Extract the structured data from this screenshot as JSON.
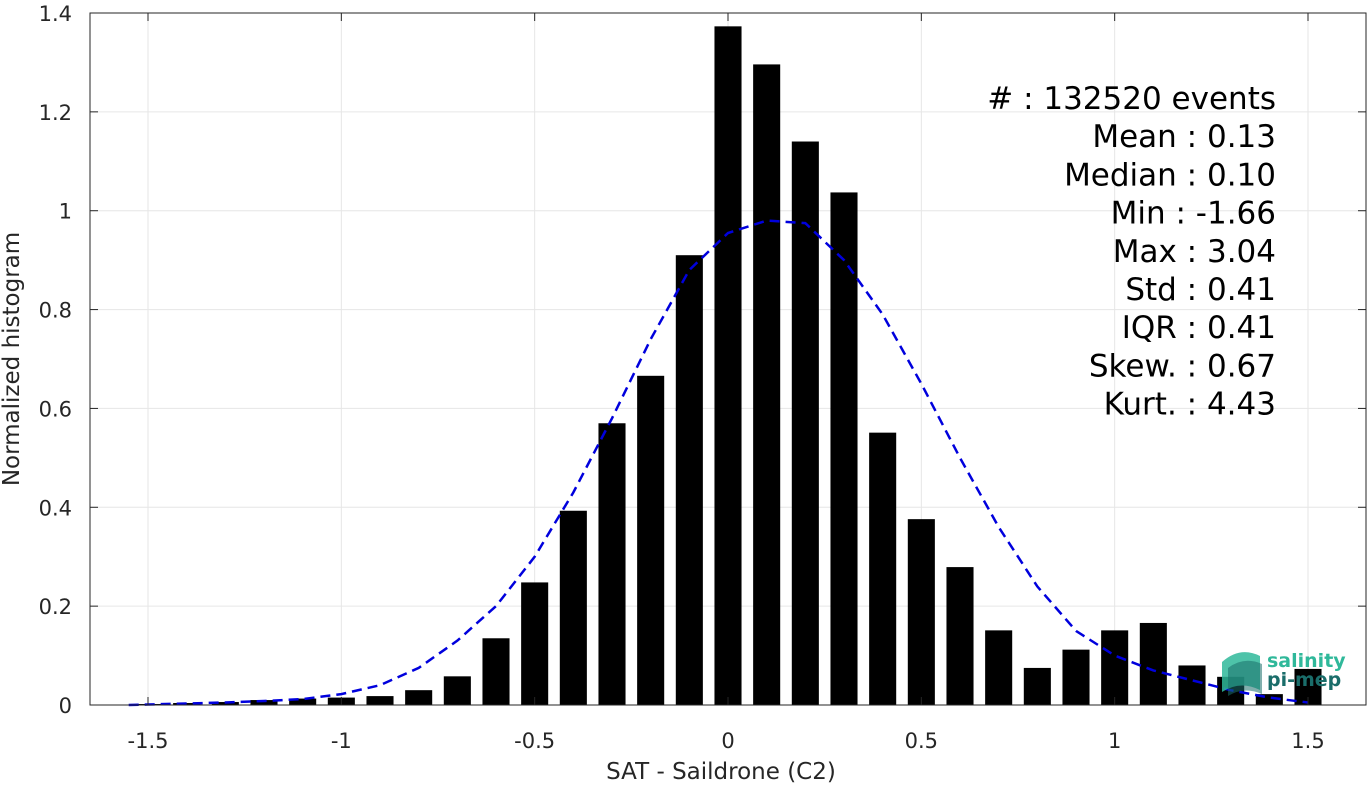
{
  "chart_data": {
    "type": "bar",
    "xlabel": "SAT - Saildrone (C2)",
    "ylabel": "Normalized histogram",
    "xlim": [
      -1.65,
      1.65
    ],
    "ylim": [
      0,
      1.4
    ],
    "xticks": [
      -1.5,
      -1,
      -0.5,
      0,
      0.5,
      1,
      1.5
    ],
    "xtick_labels": [
      "-1.5",
      "-1",
      "-0.5",
      "0",
      "0.5",
      "1",
      "1.5"
    ],
    "yticks": [
      0,
      0.2,
      0.4,
      0.6,
      0.8,
      1,
      1.2,
      1.4
    ],
    "ytick_labels": [
      "0",
      "0.2",
      "0.4",
      "0.6",
      "0.8",
      "1",
      "1.2",
      "1.4"
    ],
    "grid": true,
    "bar_color": "#000000",
    "bars": {
      "centers": [
        -1.5,
        -1.4,
        -1.3,
        -1.2,
        -1.1,
        -1.0,
        -0.9,
        -0.8,
        -0.7,
        -0.6,
        -0.5,
        -0.4,
        -0.3,
        -0.2,
        -0.1,
        0.0,
        0.1,
        0.2,
        0.3,
        0.4,
        0.5,
        0.6,
        0.7,
        0.8,
        0.9,
        1.0,
        1.1,
        1.2,
        1.3,
        1.4,
        1.5
      ],
      "values": [
        0.002,
        0.004,
        0.006,
        0.01,
        0.013,
        0.015,
        0.018,
        0.03,
        0.058,
        0.135,
        0.248,
        0.393,
        0.57,
        0.666,
        0.91,
        1.373,
        1.296,
        1.14,
        1.037,
        0.551,
        0.376,
        0.279,
        0.151,
        0.075,
        0.112,
        0.151,
        0.166,
        0.08,
        0.057,
        0.022,
        0.073
      ]
    },
    "fit_curve": {
      "style": "dashed",
      "color": "#0000dd",
      "x": [
        -1.55,
        -1.5,
        -1.4,
        -1.3,
        -1.2,
        -1.1,
        -1.0,
        -0.9,
        -0.8,
        -0.7,
        -0.6,
        -0.5,
        -0.4,
        -0.3,
        -0.2,
        -0.1,
        0.0,
        0.1,
        0.2,
        0.3,
        0.4,
        0.5,
        0.6,
        0.7,
        0.8,
        0.9,
        1.0,
        1.1,
        1.2,
        1.3,
        1.4,
        1.5
      ],
      "y": [
        0.0,
        0.001,
        0.003,
        0.005,
        0.008,
        0.012,
        0.022,
        0.04,
        0.075,
        0.13,
        0.2,
        0.3,
        0.43,
        0.58,
        0.74,
        0.88,
        0.955,
        0.98,
        0.975,
        0.9,
        0.79,
        0.65,
        0.5,
        0.36,
        0.24,
        0.15,
        0.1,
        0.07,
        0.05,
        0.03,
        0.015,
        0.005
      ]
    }
  },
  "stats": [
    "#   : 132520 events",
    "Mean : 0.13",
    "Median : 0.10",
    "Min : -1.66",
    "Max : 3.04",
    "Std : 0.41",
    "IQR : 0.41",
    "Skew. : 0.67",
    "Kurt. : 4.43"
  ],
  "logo": {
    "line1": "salinity",
    "line2": "pi-mep",
    "color1": "#2fb89a",
    "color2": "#1a6d6a"
  }
}
